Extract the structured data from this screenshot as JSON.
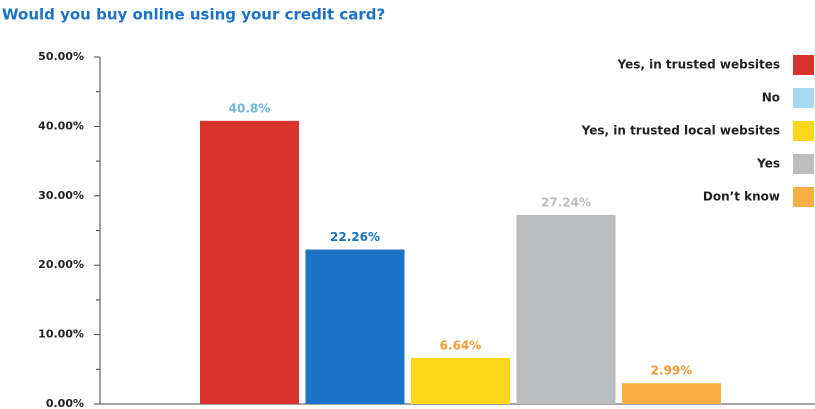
{
  "chart_data": {
    "type": "bar",
    "title": "Would you buy online using your credit card?",
    "ylim": [
      0,
      50
    ],
    "yticks": [
      {
        "value": 0,
        "label": "0.00%"
      },
      {
        "value": 10,
        "label": "10.00%"
      },
      {
        "value": 20,
        "label": "20.00%"
      },
      {
        "value": 30,
        "label": "30.00%"
      },
      {
        "value": 40,
        "label": "40.00%"
      },
      {
        "value": 50,
        "label": "50.00%"
      }
    ],
    "legend": "top-right",
    "series": [
      {
        "name": "Yes, in trusted websites",
        "color": "#d9342b",
        "bar_color": "#d9342b",
        "label_color": "#6fb7e0",
        "values": [
          40.8
        ],
        "value_labels": [
          "40.8%"
        ]
      },
      {
        "name": "No",
        "color": "#a9d8f2",
        "bar_color": "#1a73c7",
        "label_color": "#1a73c7",
        "values": [
          22.26
        ],
        "value_labels": [
          "22.26%"
        ]
      },
      {
        "name": "Yes, in trusted local websites",
        "color": "#fbd81c",
        "bar_color": "#fbd81c",
        "label_color": "#f29a35",
        "values": [
          6.64
        ],
        "value_labels": [
          "6.64%"
        ]
      },
      {
        "name": "Yes",
        "color": "#bcbdbf",
        "bar_color": "#bcbdbf",
        "label_color": "#bcbdbf",
        "values": [
          27.24
        ],
        "value_labels": [
          "27.24%"
        ]
      },
      {
        "name": "Don’t know",
        "color": "#f7ae45",
        "bar_color": "#f7ae45",
        "label_color": "#f29a35",
        "values": [
          2.99
        ],
        "value_labels": [
          "2.99%"
        ]
      }
    ]
  }
}
